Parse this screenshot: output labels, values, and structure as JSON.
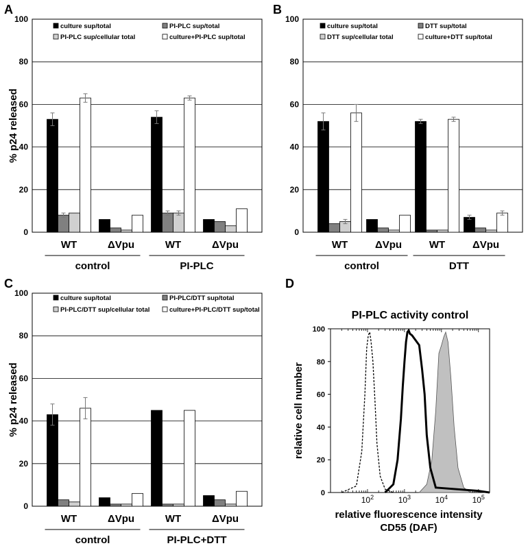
{
  "panels": [
    {
      "letter": "A",
      "chart_index": 0
    },
    {
      "letter": "B",
      "chart_index": 1
    },
    {
      "letter": "C",
      "chart_index": 2
    },
    {
      "letter": "D",
      "chart_index": 3
    }
  ],
  "chart_data": [
    {
      "type": "bar",
      "panel": "A",
      "title": "",
      "ylabel": "% p24 released",
      "ylim": [
        0,
        100
      ],
      "yticks": [
        0,
        20,
        40,
        60,
        80,
        100
      ],
      "grid": true,
      "legend_position": "top",
      "categories": [
        "WT",
        "ΔVpu",
        "WT",
        "ΔVpu"
      ],
      "groups": [
        {
          "label": "control",
          "categories": [
            0,
            1
          ]
        },
        {
          "label": "PI-PLC",
          "categories": [
            2,
            3
          ]
        }
      ],
      "series": [
        {
          "name": "culture sup/total",
          "color": "#000000",
          "values": [
            53,
            6,
            54,
            6
          ],
          "errors": [
            3,
            0,
            3,
            0
          ]
        },
        {
          "name": "PI-PLC sup/total",
          "color": "#808080",
          "values": [
            8,
            2,
            9,
            5
          ],
          "errors": [
            1,
            0,
            1,
            0
          ]
        },
        {
          "name": "PI-PLC sup/cellular total",
          "color": "#d0d0d0",
          "values": [
            9,
            1,
            9,
            3
          ],
          "errors": [
            0,
            0,
            1,
            0
          ]
        },
        {
          "name": "culture+PI-PLC sup/total",
          "color": "#ffffff",
          "values": [
            63,
            8,
            63,
            11
          ],
          "errors": [
            2,
            0,
            1,
            0
          ]
        }
      ]
    },
    {
      "type": "bar",
      "panel": "B",
      "title": "",
      "ylabel": "",
      "ylim": [
        0,
        100
      ],
      "yticks": [
        0,
        20,
        40,
        60,
        80,
        100
      ],
      "grid": true,
      "legend_position": "top",
      "categories": [
        "WT",
        "ΔVpu",
        "WT",
        "ΔVpu"
      ],
      "groups": [
        {
          "label": "control",
          "categories": [
            0,
            1
          ]
        },
        {
          "label": "DTT",
          "categories": [
            2,
            3
          ]
        }
      ],
      "series": [
        {
          "name": "culture sup/total",
          "color": "#000000",
          "values": [
            52,
            6,
            52,
            7
          ],
          "errors": [
            4,
            0,
            1,
            1
          ]
        },
        {
          "name": "DTT sup/total",
          "color": "#808080",
          "values": [
            4,
            2,
            1,
            2
          ],
          "errors": [
            0,
            0,
            0,
            0
          ]
        },
        {
          "name": "DTT sup/cellular total",
          "color": "#d0d0d0",
          "values": [
            5,
            1,
            1,
            1
          ],
          "errors": [
            1,
            0,
            0,
            0
          ]
        },
        {
          "name": "culture+DTT sup/total",
          "color": "#ffffff",
          "values": [
            56,
            8,
            53,
            9
          ],
          "errors": [
            4,
            0,
            1,
            1
          ]
        }
      ]
    },
    {
      "type": "bar",
      "panel": "C",
      "title": "",
      "ylabel": "% p24 released",
      "ylim": [
        0,
        100
      ],
      "yticks": [
        0,
        20,
        40,
        60,
        80,
        100
      ],
      "grid": true,
      "legend_position": "top",
      "categories": [
        "WT",
        "ΔVpu",
        "WT",
        "ΔVpu"
      ],
      "groups": [
        {
          "label": "control",
          "categories": [
            0,
            1
          ]
        },
        {
          "label": "PI-PLC+DTT",
          "categories": [
            2,
            3
          ]
        }
      ],
      "series": [
        {
          "name": "culture sup/total",
          "color": "#000000",
          "values": [
            43,
            4,
            45,
            5
          ],
          "errors": [
            5,
            0,
            0,
            0
          ]
        },
        {
          "name": "PI-PLC/DTT sup/total",
          "color": "#808080",
          "values": [
            3,
            1,
            1,
            3
          ],
          "errors": [
            0,
            0,
            0,
            0
          ]
        },
        {
          "name": "PI-PLC/DTT sup/cellular total",
          "color": "#d0d0d0",
          "values": [
            2,
            1,
            1,
            1
          ],
          "errors": [
            0,
            0,
            0,
            0
          ]
        },
        {
          "name": "culture+PI-PLC/DTT sup/total",
          "color": "#ffffff",
          "values": [
            46,
            6,
            45,
            7
          ],
          "errors": [
            5,
            0,
            0,
            0
          ]
        }
      ]
    },
    {
      "type": "line",
      "panel": "D",
      "title": "PI-PLC activity control",
      "xlabel": "relative fluorescence intensity",
      "xlabel2": "CD55 (DAF)",
      "ylabel": "relative cell number",
      "x_scale": "log",
      "xlim": [
        10,
        200000
      ],
      "ylim": [
        0,
        100
      ],
      "yticks": [
        0,
        20,
        40,
        60,
        80,
        100
      ],
      "xtick_labels": [
        {
          "value": 100,
          "base": "10",
          "exp": "2"
        },
        {
          "value": 1000,
          "base": "10",
          "exp": "3"
        },
        {
          "value": 10000,
          "base": "10",
          "exp": "4"
        },
        {
          "value": 100000,
          "base": "10",
          "exp": "5"
        }
      ],
      "grid": false,
      "series": [
        {
          "style": "dashed",
          "color": "#000000",
          "fill": "none",
          "x": [
            20,
            50,
            70,
            85,
            95,
            105,
            115,
            125,
            140,
            160,
            180,
            220,
            300,
            500
          ],
          "y": [
            0,
            4,
            25,
            60,
            88,
            96,
            98,
            92,
            80,
            55,
            30,
            10,
            2,
            0
          ]
        },
        {
          "style": "thick",
          "color": "#000000",
          "fill": "none",
          "x": [
            300,
            500,
            650,
            800,
            900,
            1000,
            1100,
            1200,
            1300,
            1400,
            1600,
            2000,
            2500,
            3000,
            3500,
            4000,
            5000,
            7000,
            100000,
            200000
          ],
          "y": [
            0,
            5,
            20,
            45,
            65,
            80,
            92,
            98,
            99,
            97,
            96,
            93,
            90,
            75,
            60,
            35,
            15,
            3,
            1,
            0
          ]
        },
        {
          "style": "filled",
          "color": "#555555",
          "fill": "#c0c0c0",
          "x": [
            2500,
            4000,
            5500,
            7000,
            8500,
            10000,
            11500,
            13000,
            15000,
            18000,
            22000,
            28000,
            40000,
            60000
          ],
          "y": [
            0,
            5,
            20,
            50,
            85,
            90,
            95,
            98,
            92,
            70,
            40,
            15,
            3,
            0
          ]
        }
      ]
    }
  ]
}
